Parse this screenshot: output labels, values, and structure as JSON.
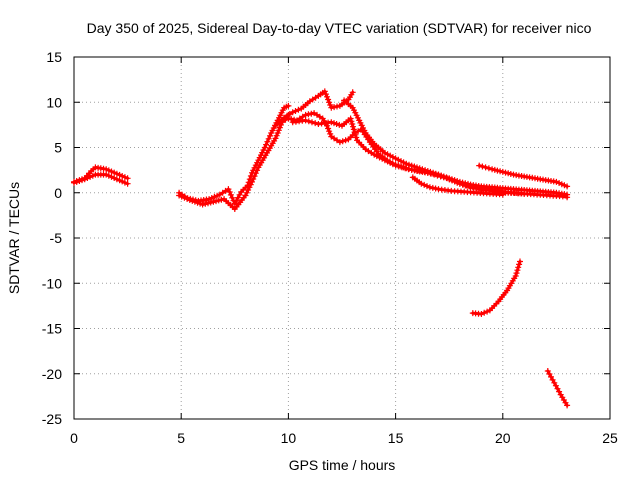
{
  "chart_data": {
    "type": "scatter",
    "title": "Day 350 of 2025, Sidereal Day-to-day VTEC variation (SDTVAR) for receiver nico",
    "xlabel": "GPS time / hours",
    "ylabel": "SDTVAR / TECUs",
    "xlim": [
      0,
      25
    ],
    "ylim": [
      -25,
      15
    ],
    "xticks": [
      0,
      5,
      10,
      15,
      20,
      25
    ],
    "xtick_labels": [
      "0",
      "5",
      "10",
      "15",
      "20",
      "25"
    ],
    "yticks": [
      -25,
      -20,
      -15,
      -10,
      -5,
      0,
      5,
      10,
      15
    ],
    "ytick_labels": [
      "-25",
      "-20",
      "-15",
      "-10",
      "-5",
      "0",
      "5",
      "10",
      "15"
    ],
    "grid": true,
    "marker": "plus",
    "series_color": "#ff0000",
    "series": [
      {
        "name": "trace-1",
        "x": [
          0.0,
          0.5,
          0.8,
          1.0,
          1.5,
          2.0,
          2.5
        ],
        "y": [
          1.2,
          1.6,
          2.4,
          2.8,
          2.6,
          2.1,
          1.6
        ]
      },
      {
        "name": "trace-2",
        "x": [
          0.0,
          0.5,
          1.0,
          1.5,
          2.0,
          2.5
        ],
        "y": [
          1.1,
          1.5,
          2.0,
          2.0,
          1.5,
          1.0
        ]
      },
      {
        "name": "trace-3",
        "x": [
          4.9,
          5.3,
          5.8,
          6.3,
          6.8,
          7.2,
          7.5,
          7.8,
          8.1,
          8.3,
          8.6,
          8.9,
          9.2,
          9.5,
          9.8,
          10.0
        ],
        "y": [
          0.0,
          -0.6,
          -0.9,
          -0.7,
          -0.2,
          0.4,
          -1.2,
          0.1,
          0.8,
          2.2,
          3.6,
          5.0,
          6.6,
          8.0,
          9.4,
          9.6
        ]
      },
      {
        "name": "trace-4",
        "x": [
          4.9,
          5.4,
          6.0,
          6.5,
          7.0,
          7.5,
          8.0,
          8.3,
          8.6,
          9.0,
          9.4,
          9.7,
          10.0
        ],
        "y": [
          -0.3,
          -0.8,
          -1.3,
          -1.0,
          -0.7,
          -1.8,
          -0.3,
          1.2,
          2.8,
          4.4,
          6.0,
          7.8,
          8.6
        ]
      },
      {
        "name": "trace-5",
        "x": [
          9.4,
          9.8,
          10.2,
          10.6,
          11.0,
          11.4,
          11.7,
          12.0,
          12.4,
          12.8,
          13.0
        ],
        "y": [
          7.4,
          8.3,
          8.9,
          9.3,
          10.1,
          10.7,
          11.2,
          9.4,
          9.6,
          10.3,
          11.1
        ]
      },
      {
        "name": "trace-6",
        "x": [
          9.6,
          10.0,
          10.4,
          10.8,
          11.2,
          11.6,
          11.8,
          12.0,
          12.4,
          12.8,
          13.1,
          13.4,
          13.8,
          14.2,
          14.6,
          15.0,
          15.5,
          16.0,
          16.5,
          17.0,
          17.5,
          18.0,
          18.5,
          19.0,
          19.5,
          20.0,
          20.5,
          21.0,
          21.5,
          22.0,
          22.5,
          23.0
        ],
        "y": [
          7.8,
          8.2,
          8.0,
          8.6,
          8.8,
          8.2,
          7.4,
          6.2,
          5.6,
          5.9,
          6.6,
          7.0,
          5.6,
          4.3,
          3.6,
          3.1,
          2.7,
          2.4,
          2.2,
          2.0,
          1.6,
          1.2,
          0.9,
          0.7,
          0.6,
          0.5,
          0.4,
          0.3,
          0.2,
          0.1,
          0.0,
          -0.2
        ]
      },
      {
        "name": "trace-7",
        "x": [
          10.2,
          10.8,
          11.4,
          12.0,
          12.5,
          12.9,
          13.2,
          13.6,
          14.0,
          14.5,
          15.0,
          15.6,
          16.2,
          16.8,
          17.4,
          18.0,
          18.6,
          19.2,
          19.8,
          20.4,
          21.0,
          21.6,
          22.2,
          22.8,
          23.0
        ],
        "y": [
          7.8,
          8.0,
          7.6,
          7.8,
          7.4,
          8.2,
          5.8,
          4.8,
          4.2,
          3.6,
          3.0,
          2.6,
          2.4,
          2.0,
          1.6,
          1.0,
          0.6,
          0.4,
          0.2,
          0.0,
          -0.1,
          -0.2,
          -0.3,
          -0.4,
          -0.5
        ]
      },
      {
        "name": "trace-8",
        "x": [
          12.6,
          13.0,
          13.3,
          13.6,
          14.0,
          14.5,
          15.0,
          15.5,
          16.0,
          16.5,
          17.0,
          17.5,
          18.0,
          18.5,
          19.0,
          19.5,
          20.0,
          20.5,
          21.0
        ],
        "y": [
          10.2,
          9.4,
          8.0,
          6.6,
          5.4,
          4.4,
          3.8,
          3.2,
          2.8,
          2.4,
          2.0,
          1.5,
          1.0,
          0.6,
          0.4,
          0.2,
          0.0,
          0.0,
          -0.1
        ]
      },
      {
        "name": "trace-9",
        "x": [
          15.8,
          16.2,
          16.6,
          17.0,
          17.6,
          18.2,
          18.8,
          19.4,
          20.0
        ],
        "y": [
          1.7,
          1.0,
          0.6,
          0.4,
          0.2,
          0.1,
          0.0,
          -0.1,
          -0.2
        ]
      },
      {
        "name": "trace-10",
        "x": [
          18.9,
          19.5,
          20.0,
          20.5,
          21.0,
          21.5,
          22.0,
          22.5,
          23.0
        ],
        "y": [
          3.0,
          2.6,
          2.3,
          2.0,
          1.8,
          1.6,
          1.4,
          1.2,
          0.7
        ]
      },
      {
        "name": "trace-11",
        "x": [
          18.6,
          19.0,
          19.4,
          19.8,
          20.2,
          20.6,
          20.8
        ],
        "y": [
          -13.3,
          -13.4,
          -13.0,
          -12.0,
          -10.8,
          -9.2,
          -7.6
        ]
      },
      {
        "name": "trace-12",
        "x": [
          22.1,
          22.4,
          22.7,
          23.0
        ],
        "y": [
          -19.7,
          -21.0,
          -22.3,
          -23.5
        ]
      }
    ]
  }
}
